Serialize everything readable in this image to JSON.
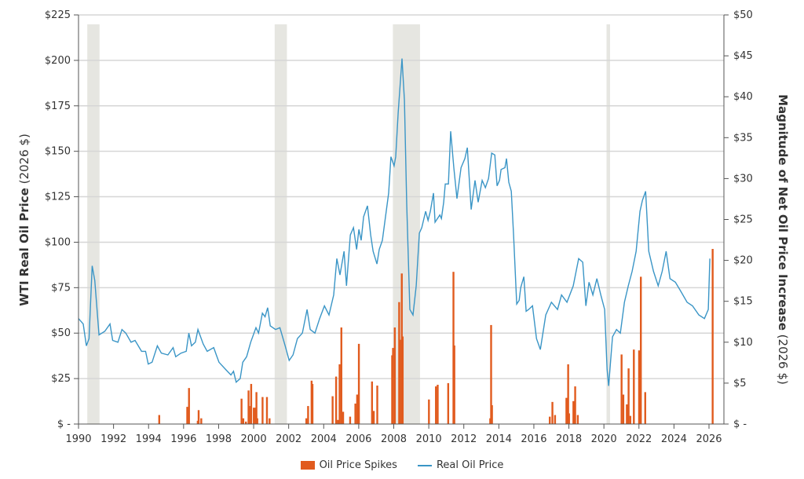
{
  "chart_data": {
    "type": "bar+line",
    "left_axis": {
      "title_bold": "WTI Real Oil Price",
      "title_unit": " (2026 $)",
      "ylim": [
        0,
        225
      ],
      "tick_labels": [
        "$ -",
        "$25",
        "$50",
        "$75",
        "$100",
        "$125",
        "$150",
        "$175",
        "$200",
        "$225"
      ]
    },
    "right_axis": {
      "title_bold": "Magnitude of Net Oil Price Increase",
      "title_unit": " (2026 $)",
      "ylim": [
        0,
        50
      ],
      "tick_labels": [
        "$ -",
        "$5",
        "$10",
        "$15",
        "$20",
        "$25",
        "$30",
        "$35",
        "$40",
        "$45",
        "$50"
      ]
    },
    "x_axis": {
      "xlim": [
        1990,
        2027
      ],
      "tick_labels": [
        "1990",
        "1992",
        "1994",
        "1996",
        "1998",
        "2000",
        "2002",
        "2004",
        "2006",
        "2008",
        "2010",
        "2012",
        "2014",
        "2016",
        "2018",
        "2020",
        "2022",
        "2024",
        "2026"
      ]
    },
    "grid": true,
    "legend_position": "bottom",
    "recessions": [
      [
        1990.5,
        1991.2
      ],
      [
        2001.2,
        2001.9
      ],
      [
        2007.95,
        2009.5
      ],
      [
        2020.15,
        2020.35
      ]
    ],
    "series": [
      {
        "name": "Oil Price Spikes",
        "type": "bar",
        "axis": "right",
        "color": "#e15b1e",
        "points": [
          [
            1994.6,
            1.1
          ],
          [
            1996.2,
            2.1
          ],
          [
            1996.3,
            4.4
          ],
          [
            1996.8,
            0.4
          ],
          [
            1996.85,
            1.7
          ],
          [
            1997.0,
            0.7
          ],
          [
            1999.3,
            3.1
          ],
          [
            1999.4,
            0.7
          ],
          [
            1999.55,
            0.3
          ],
          [
            1999.7,
            4.1
          ],
          [
            1999.75,
            2.2
          ],
          [
            1999.85,
            4.9
          ],
          [
            2000.0,
            2.0
          ],
          [
            2000.1,
            2.0
          ],
          [
            2000.15,
            3.9
          ],
          [
            2000.2,
            0.7
          ],
          [
            2000.5,
            3.3
          ],
          [
            2000.75,
            3.3
          ],
          [
            2000.9,
            0.7
          ],
          [
            2003.0,
            0.7
          ],
          [
            2003.1,
            2.2
          ],
          [
            2003.3,
            5.3
          ],
          [
            2003.35,
            4.9
          ],
          [
            2004.5,
            3.4
          ],
          [
            2004.7,
            5.8
          ],
          [
            2004.8,
            0.5
          ],
          [
            2004.9,
            7.3
          ],
          [
            2005.0,
            11.8
          ],
          [
            2005.1,
            1.5
          ],
          [
            2005.5,
            0.9
          ],
          [
            2005.8,
            2.5
          ],
          [
            2005.9,
            3.6
          ],
          [
            2006.0,
            9.8
          ],
          [
            2006.75,
            5.2
          ],
          [
            2006.85,
            1.6
          ],
          [
            2007.05,
            4.7
          ],
          [
            2007.9,
            8.4
          ],
          [
            2007.95,
            9.3
          ],
          [
            2008.05,
            11.8
          ],
          [
            2008.3,
            14.9
          ],
          [
            2008.35,
            10.3
          ],
          [
            2008.45,
            18.4
          ],
          [
            2008.5,
            10.7
          ],
          [
            2010.0,
            3.0
          ],
          [
            2010.4,
            4.6
          ],
          [
            2010.5,
            4.8
          ],
          [
            2011.1,
            5.0
          ],
          [
            2011.4,
            18.6
          ],
          [
            2011.45,
            9.6
          ],
          [
            2013.5,
            0.7
          ],
          [
            2013.55,
            12.1
          ],
          [
            2013.6,
            2.3
          ],
          [
            2016.9,
            0.9
          ],
          [
            2017.05,
            2.7
          ],
          [
            2017.2,
            1.1
          ],
          [
            2017.85,
            3.2
          ],
          [
            2017.95,
            7.3
          ],
          [
            2018.0,
            1.3
          ],
          [
            2018.25,
            2.8
          ],
          [
            2018.35,
            4.6
          ],
          [
            2018.5,
            1.1
          ],
          [
            2021.0,
            8.5
          ],
          [
            2021.1,
            3.6
          ],
          [
            2021.3,
            2.4
          ],
          [
            2021.4,
            6.8
          ],
          [
            2021.5,
            1.0
          ],
          [
            2021.7,
            9.1
          ],
          [
            2022.0,
            9.0
          ],
          [
            2022.1,
            18.0
          ],
          [
            2022.35,
            3.9
          ],
          [
            2026.2,
            21.4
          ]
        ]
      },
      {
        "name": "Real Oil Price",
        "type": "line",
        "axis": "left",
        "color": "#3a95c6",
        "points": [
          [
            1990.0,
            58
          ],
          [
            1990.27,
            55
          ],
          [
            1990.45,
            43
          ],
          [
            1990.6,
            47
          ],
          [
            1990.78,
            87
          ],
          [
            1990.93,
            79
          ],
          [
            1991.17,
            49
          ],
          [
            1991.5,
            51
          ],
          [
            1991.8,
            55
          ],
          [
            1991.95,
            46
          ],
          [
            1992.25,
            45
          ],
          [
            1992.48,
            52
          ],
          [
            1992.7,
            50
          ],
          [
            1993.0,
            45
          ],
          [
            1993.23,
            46
          ],
          [
            1993.6,
            40
          ],
          [
            1993.83,
            40
          ],
          [
            1993.98,
            33
          ],
          [
            1994.2,
            34
          ],
          [
            1994.5,
            43
          ],
          [
            1994.73,
            39
          ],
          [
            1995.1,
            38
          ],
          [
            1995.4,
            42
          ],
          [
            1995.55,
            37
          ],
          [
            1995.85,
            39
          ],
          [
            1996.15,
            40
          ],
          [
            1996.3,
            50
          ],
          [
            1996.45,
            43
          ],
          [
            1996.67,
            45
          ],
          [
            1996.82,
            52
          ],
          [
            1997.12,
            44
          ],
          [
            1997.35,
            40
          ],
          [
            1997.72,
            42
          ],
          [
            1997.87,
            38
          ],
          [
            1998.02,
            34
          ],
          [
            1998.4,
            30
          ],
          [
            1998.7,
            27
          ],
          [
            1998.85,
            29
          ],
          [
            1999.0,
            23
          ],
          [
            1999.23,
            25
          ],
          [
            1999.38,
            34
          ],
          [
            1999.6,
            37
          ],
          [
            1999.83,
            45
          ],
          [
            2000.13,
            53
          ],
          [
            2000.28,
            50
          ],
          [
            2000.5,
            61
          ],
          [
            2000.65,
            59
          ],
          [
            2000.8,
            64
          ],
          [
            2000.95,
            54
          ],
          [
            2001.25,
            52
          ],
          [
            2001.5,
            53
          ],
          [
            2001.8,
            43
          ],
          [
            2002.03,
            35
          ],
          [
            2002.25,
            38
          ],
          [
            2002.5,
            47
          ],
          [
            2002.78,
            50
          ],
          [
            2003.05,
            63
          ],
          [
            2003.23,
            52
          ],
          [
            2003.5,
            50
          ],
          [
            2003.77,
            58
          ],
          [
            2004.04,
            65
          ],
          [
            2004.3,
            60
          ],
          [
            2004.57,
            71
          ],
          [
            2004.75,
            91
          ],
          [
            2004.93,
            82
          ],
          [
            2005.16,
            95
          ],
          [
            2005.3,
            76
          ],
          [
            2005.52,
            104
          ],
          [
            2005.7,
            108
          ],
          [
            2005.88,
            96
          ],
          [
            2006.01,
            107
          ],
          [
            2006.14,
            101
          ],
          [
            2006.28,
            114
          ],
          [
            2006.5,
            120
          ],
          [
            2006.68,
            104
          ],
          [
            2006.82,
            95
          ],
          [
            2007.04,
            88
          ],
          [
            2007.17,
            96
          ],
          [
            2007.35,
            101
          ],
          [
            2007.57,
            117
          ],
          [
            2007.71,
            127
          ],
          [
            2007.84,
            147
          ],
          [
            2008.02,
            142
          ],
          [
            2008.11,
            147
          ],
          [
            2008.25,
            171
          ],
          [
            2008.47,
            201
          ],
          [
            2008.61,
            178
          ],
          [
            2008.74,
            121
          ],
          [
            2008.92,
            63
          ],
          [
            2009.1,
            60
          ],
          [
            2009.28,
            76
          ],
          [
            2009.46,
            105
          ],
          [
            2009.6,
            108
          ],
          [
            2009.82,
            117
          ],
          [
            2009.96,
            112
          ],
          [
            2010.09,
            117
          ],
          [
            2010.27,
            127
          ],
          [
            2010.36,
            111
          ],
          [
            2010.63,
            115
          ],
          [
            2010.72,
            113
          ],
          [
            2010.85,
            122
          ],
          [
            2010.94,
            132
          ],
          [
            2011.12,
            132
          ],
          [
            2011.25,
            161
          ],
          [
            2011.43,
            141
          ],
          [
            2011.61,
            124
          ],
          [
            2011.84,
            141
          ],
          [
            2012.06,
            146
          ],
          [
            2012.2,
            152
          ],
          [
            2012.42,
            118
          ],
          [
            2012.64,
            134
          ],
          [
            2012.82,
            122
          ],
          [
            2013.05,
            134
          ],
          [
            2013.23,
            130
          ],
          [
            2013.41,
            135
          ],
          [
            2013.59,
            149
          ],
          [
            2013.77,
            148
          ],
          [
            2013.9,
            131
          ],
          [
            2014.04,
            134
          ],
          [
            2014.13,
            140
          ],
          [
            2014.35,
            141
          ],
          [
            2014.44,
            146
          ],
          [
            2014.57,
            133
          ],
          [
            2014.71,
            128
          ],
          [
            2014.84,
            104
          ],
          [
            2015.02,
            66
          ],
          [
            2015.16,
            68
          ],
          [
            2015.25,
            75
          ],
          [
            2015.43,
            81
          ],
          [
            2015.56,
            62
          ],
          [
            2015.7,
            63
          ],
          [
            2015.92,
            65
          ],
          [
            2016.15,
            47
          ],
          [
            2016.37,
            41
          ],
          [
            2016.68,
            60
          ],
          [
            2017.0,
            67
          ],
          [
            2017.35,
            63
          ],
          [
            2017.58,
            71
          ],
          [
            2017.89,
            67
          ],
          [
            2018.25,
            76
          ],
          [
            2018.56,
            91
          ],
          [
            2018.79,
            89
          ],
          [
            2018.97,
            65
          ],
          [
            2019.15,
            78
          ],
          [
            2019.37,
            71
          ],
          [
            2019.6,
            80
          ],
          [
            2019.82,
            71
          ],
          [
            2020.04,
            63
          ],
          [
            2020.18,
            30
          ],
          [
            2020.27,
            21
          ],
          [
            2020.49,
            48
          ],
          [
            2020.72,
            52
          ],
          [
            2020.94,
            50
          ],
          [
            2021.17,
            67
          ],
          [
            2021.39,
            76
          ],
          [
            2021.61,
            84
          ],
          [
            2021.84,
            95
          ],
          [
            2022.06,
            117
          ],
          [
            2022.2,
            123
          ],
          [
            2022.38,
            128
          ],
          [
            2022.56,
            95
          ],
          [
            2022.83,
            84
          ],
          [
            2023.1,
            76
          ],
          [
            2023.33,
            84
          ],
          [
            2023.55,
            95
          ],
          [
            2023.77,
            80
          ],
          [
            2024.08,
            78
          ],
          [
            2024.39,
            73
          ],
          [
            2024.75,
            67
          ],
          [
            2025.06,
            65
          ],
          [
            2025.42,
            60
          ],
          [
            2025.74,
            58
          ],
          [
            2025.96,
            63
          ],
          [
            2026.05,
            91
          ]
        ]
      }
    ]
  }
}
